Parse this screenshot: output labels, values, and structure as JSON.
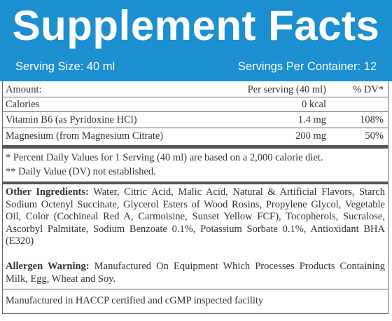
{
  "header": {
    "title": "Supplement Facts",
    "serving_size": "Serving Size: 40 ml",
    "servings_per_container": "Servings Per Container: 12"
  },
  "table": {
    "columns": [
      "Amount:",
      "Per serving (40 ml)",
      "% DV*"
    ],
    "rows": [
      {
        "name": "Calories",
        "amount": "0 kcal"
      },
      {
        "name": "Vitamin B6 (as Pyridoxine HCl)",
        "amount": "1.4 mg",
        "dv": "108%"
      },
      {
        "name": "Magnesium (from Magnesium Citrate)",
        "amount": "200 mg",
        "dv": "50%"
      }
    ]
  },
  "footnotes": [
    "* Percent Daily Values for 1 Serving (40 ml) are based on a 2,000 calorie diet.",
    "** Daily Value (DV) not established."
  ],
  "other_ingredients": {
    "label": "Other Ingredients:",
    "text": "Water, Citric Acid, Malic Acid, Natural & Artificial Flavors, Starch Sodium Octenyl Succinate, Glycerol Esters of Wood Rosins, Propylene Glycol, Vegetable Oil, Color (Cochineal Red A, Carmoisine, Sunset Yellow FCF), Tocopherols, Sucralose, Ascorbyl Palmitate, Sodium Benzoate 0.1%, Potassium Sorbate 0.1%, Antioxidant BHA (E320)"
  },
  "allergen_warning": {
    "label": "Allergen Warning:",
    "text": "Manufactured On Equipment Which Processes Products Containing Milk, Egg, Wheat and Soy."
  },
  "manufacturing": "Manufactured in HACCP certified and cGMP inspected facility"
}
